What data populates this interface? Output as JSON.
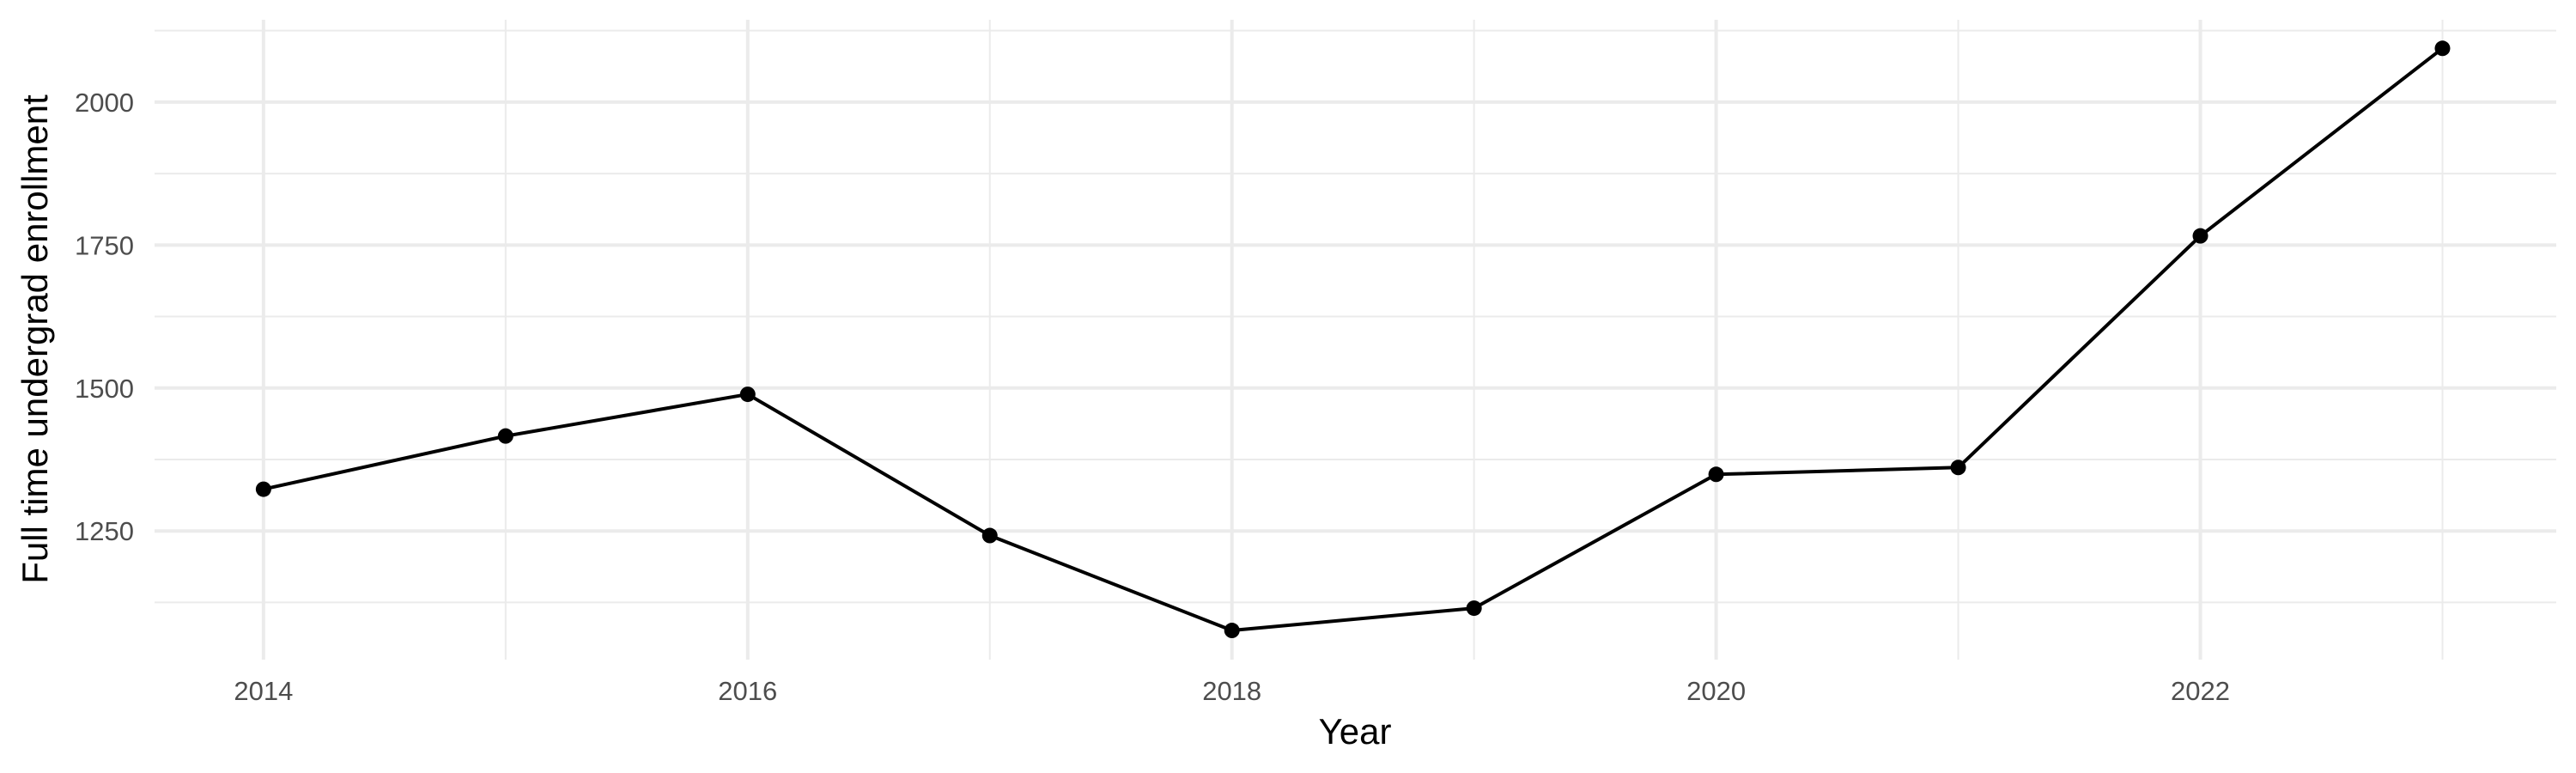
{
  "chart_data": {
    "type": "line",
    "title": "",
    "xlabel": "Year",
    "ylabel": "Full time undergrad enrollment",
    "x": [
      2014,
      2015,
      2016,
      2017,
      2018,
      2019,
      2020,
      2021,
      2022,
      2023
    ],
    "series": [
      {
        "values": [
          1323,
          1416,
          1489,
          1242,
          1076,
          1115,
          1349,
          1361,
          1766,
          2094
        ]
      }
    ],
    "xlim": [
      2013.55,
      2023.47
    ],
    "ylim": [
      1025,
      2144
    ],
    "x_ticks": [
      2014,
      2016,
      2018,
      2020,
      2022
    ],
    "x_tick_labels": [
      "2014",
      "2016",
      "2018",
      "2020",
      "2022"
    ],
    "y_ticks": [
      1250,
      1500,
      1750,
      2000
    ],
    "y_tick_labels": [
      "1250",
      "1500",
      "1750",
      "2000"
    ],
    "grid": true,
    "markers": true,
    "colors": {
      "line": "#000000",
      "grid": "#ebebeb",
      "tick_text": "#4d4d4d"
    }
  }
}
